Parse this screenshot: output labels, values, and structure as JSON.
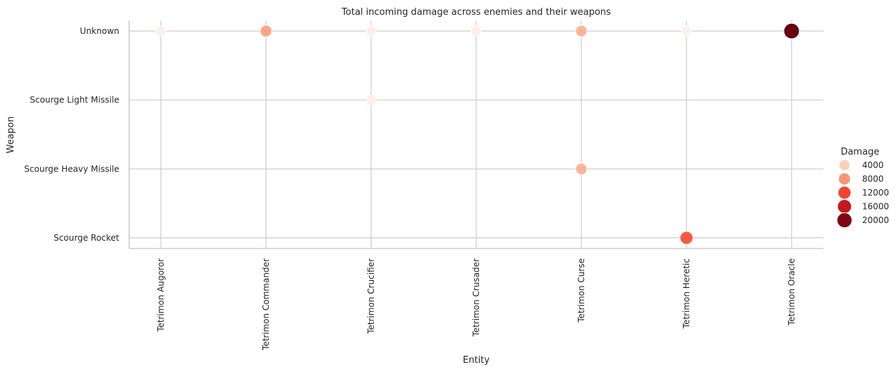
{
  "chart_data": {
    "type": "scatter",
    "title": "Total incoming damage across enemies and their weapons",
    "xlabel": "Entity",
    "ylabel": "Weapon",
    "x_categories": [
      "Tetrimon Augoror",
      "Tetrimon Commander",
      "Tetrimon Crucifier",
      "Tetrimon Crusader",
      "Tetrimon Curse",
      "Tetrimon Heretic",
      "Tetrimon Oracle"
    ],
    "y_categories": [
      "Unknown",
      "Scourge Light Missile",
      "Scourge Heavy Missile",
      "Scourge Rocket"
    ],
    "grid": true,
    "points": [
      {
        "x": "Tetrimon Augoror",
        "y": "Unknown",
        "damage": 800
      },
      {
        "x": "Tetrimon Commander",
        "y": "Unknown",
        "damage": 7000
      },
      {
        "x": "Tetrimon Crucifier",
        "y": "Unknown",
        "damage": 800
      },
      {
        "x": "Tetrimon Crucifier",
        "y": "Scourge Light Missile",
        "damage": 800
      },
      {
        "x": "Tetrimon Crusader",
        "y": "Unknown",
        "damage": 800
      },
      {
        "x": "Tetrimon Curse",
        "y": "Unknown",
        "damage": 6000
      },
      {
        "x": "Tetrimon Curse",
        "y": "Scourge Heavy Missile",
        "damage": 6000
      },
      {
        "x": "Tetrimon Heretic",
        "y": "Unknown",
        "damage": 800
      },
      {
        "x": "Tetrimon Heretic",
        "y": "Scourge Rocket",
        "damage": 12000
      },
      {
        "x": "Tetrimon Oracle",
        "y": "Unknown",
        "damage": 22000
      }
    ],
    "legend": {
      "title": "Damage",
      "placement": "right",
      "entries": [
        {
          "label": "4000",
          "value": 4000,
          "color": "#fdd0b9"
        },
        {
          "label": "8000",
          "value": 8000,
          "color": "#fc9474"
        },
        {
          "label": "12000",
          "value": 12000,
          "color": "#f14432"
        },
        {
          "label": "16000",
          "value": 16000,
          "color": "#c8181d"
        },
        {
          "label": "20000",
          "value": 20000,
          "color": "#7d0712"
        }
      ]
    },
    "colors": {
      "low": "#fff5f0",
      "high": "#67000d",
      "grid": "#cccccc",
      "spine": "#cccccc"
    }
  }
}
